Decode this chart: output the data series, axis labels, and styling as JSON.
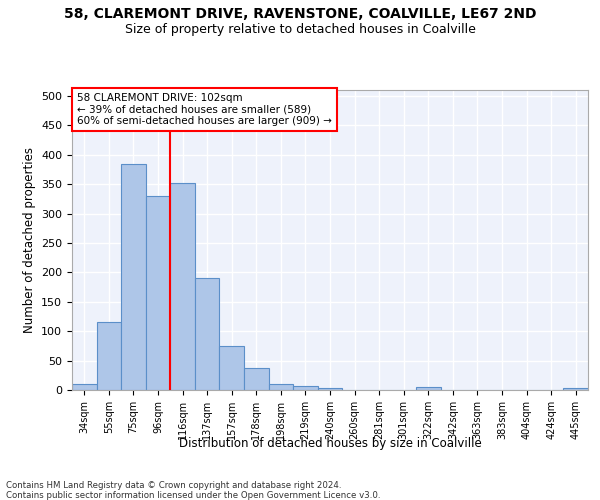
{
  "title1": "58, CLAREMONT DRIVE, RAVENSTONE, COALVILLE, LE67 2ND",
  "title2": "Size of property relative to detached houses in Coalville",
  "xlabel": "Distribution of detached houses by size in Coalville",
  "ylabel": "Number of detached properties",
  "bar_labels": [
    "34sqm",
    "55sqm",
    "75sqm",
    "96sqm",
    "116sqm",
    "137sqm",
    "157sqm",
    "178sqm",
    "198sqm",
    "219sqm",
    "240sqm",
    "260sqm",
    "281sqm",
    "301sqm",
    "322sqm",
    "342sqm",
    "363sqm",
    "383sqm",
    "404sqm",
    "424sqm",
    "445sqm"
  ],
  "bar_heights": [
    10,
    115,
    385,
    330,
    352,
    190,
    75,
    38,
    10,
    6,
    3,
    0,
    0,
    0,
    5,
    0,
    0,
    0,
    0,
    0,
    4
  ],
  "bar_color": "#aec6e8",
  "bar_edge_color": "#5b8fc9",
  "vline_x": 3.5,
  "vline_color": "red",
  "annotation_text": "58 CLAREMONT DRIVE: 102sqm\n← 39% of detached houses are smaller (589)\n60% of semi-detached houses are larger (909) →",
  "annotation_box_color": "white",
  "annotation_box_edge_color": "red",
  "ylim": [
    0,
    510
  ],
  "yticks": [
    0,
    50,
    100,
    150,
    200,
    250,
    300,
    350,
    400,
    450,
    500
  ],
  "footnote": "Contains HM Land Registry data © Crown copyright and database right 2024.\nContains public sector information licensed under the Open Government Licence v3.0.",
  "bg_color": "#eef2fb",
  "grid_color": "#ffffff",
  "title1_fontsize": 10,
  "title2_fontsize": 9
}
